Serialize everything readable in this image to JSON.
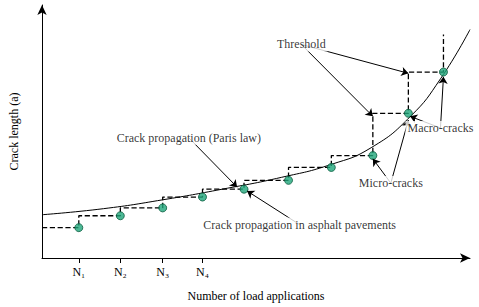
{
  "chart_data": {
    "type": "line",
    "x_label": "Number of load applications",
    "y_label": "Crack length (a)",
    "xlim": [
      0,
      10
    ],
    "ylim": [
      0,
      10
    ],
    "xticks": [
      {
        "value": 0.86,
        "label": "N₁"
      },
      {
        "value": 1.83,
        "label": "N₂"
      },
      {
        "value": 2.82,
        "label": "N₃"
      },
      {
        "value": 3.75,
        "label": "N₄"
      }
    ],
    "yticks": [],
    "tick_labels": "x",
    "grid": false,
    "series": [
      {
        "type": "line",
        "line_style": "solid",
        "color": "#000000",
        "x": [
          0,
          1.44,
          2.82,
          4.21,
          5.6,
          6.76,
          7.69,
          8.61,
          9.31,
          10
        ],
        "values": [
          1.71,
          1.95,
          2.3,
          2.72,
          3.19,
          3.7,
          4.36,
          5.6,
          7.08,
          9.03
        ]
      },
      {
        "type": "step",
        "line_style": "dashed",
        "color": "#000000",
        "x": [
          0,
          0.86,
          1.83,
          2.82,
          3.75,
          4.72,
          5.76,
          6.76,
          7.73,
          8.56,
          9.38,
          9.38
        ],
        "values": [
          1.2,
          1.2,
          1.67,
          1.98,
          2.41,
          2.72,
          3.07,
          3.58,
          4.05,
          5.72,
          7.35,
          8.83
        ]
      },
      {
        "type": "scatter",
        "marker": "circle",
        "color": "#1fa67a",
        "x": [
          0.86,
          1.83,
          2.82,
          3.75,
          4.72,
          5.76,
          6.76,
          7.73,
          8.56,
          9.38
        ],
        "values": [
          1.2,
          1.67,
          1.98,
          2.41,
          2.72,
          3.07,
          3.58,
          4.05,
          5.72,
          7.35
        ]
      }
    ],
    "annotations": [
      {
        "text": "Threshold",
        "x": 6.06,
        "y": 8.44,
        "points": [
          [
            7.73,
            5.6
          ],
          [
            8.56,
            7.3
          ]
        ]
      },
      {
        "text": "Crack propagation (Paris law)",
        "x": 3.43,
        "y": 4.75,
        "points": [
          [
            4.56,
            2.8
          ]
        ]
      },
      {
        "text": "Crack propagation in asphalt pavements",
        "x": 6.02,
        "y": 1.32,
        "points": [
          [
            4.79,
            2.65
          ]
        ]
      },
      {
        "text": "Micro-cracks",
        "x": 8.15,
        "y": 2.96,
        "points": [
          [
            7.73,
            3.92
          ],
          [
            8.56,
            5.45
          ]
        ]
      },
      {
        "text": "Macro-cracks",
        "x": 9.31,
        "y": 5.14,
        "points": [
          [
            8.6,
            5.6
          ],
          [
            9.38,
            7.16
          ]
        ]
      }
    ]
  }
}
